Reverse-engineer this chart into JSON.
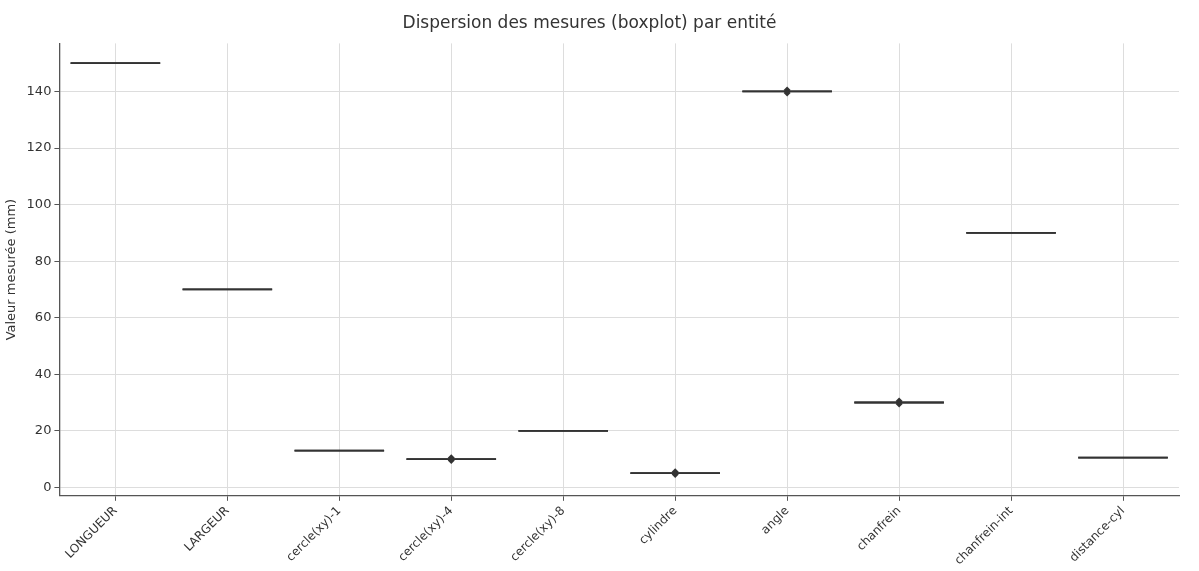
{
  "chart_data": {
    "type": "box",
    "title": "Dispersion des mesures (boxplot) par entité",
    "ylabel": "Valeur mesurée (mm)",
    "categories": [
      "LONGUEUR",
      "LARGEUR",
      "cercle(xy)-1",
      "cercle(xy)-4",
      "cercle(xy)-8",
      "cylindre",
      "angle",
      "chanfrein",
      "chanfrein-int",
      "distance-cyl"
    ],
    "color": "#333333",
    "boxes": [
      {
        "low": 150,
        "q1": 150,
        "median": 150,
        "q3": 150,
        "high": 150
      },
      {
        "low": 70,
        "q1": 70,
        "median": 70,
        "q3": 70,
        "high": 70
      },
      {
        "low": 13,
        "q1": 13,
        "median": 13,
        "q3": 13,
        "high": 13
      },
      {
        "low": 10,
        "q1": 10,
        "median": 10,
        "q3": 10,
        "high": 10,
        "outliers": [
          10.5,
          9.5
        ]
      },
      {
        "low": 20,
        "q1": 20,
        "median": 20,
        "q3": 20,
        "high": 20
      },
      {
        "low": 5,
        "q1": 5,
        "median": 5,
        "q3": 5,
        "high": 5,
        "outliers": [
          5.5,
          4.5
        ]
      },
      {
        "low": 140,
        "q1": 140,
        "median": 140,
        "q3": 140,
        "high": 140,
        "outliers": [
          140.5,
          139.5
        ]
      },
      {
        "low": 30,
        "q1": 30,
        "median": 30,
        "q3": 30,
        "high": 30,
        "outliers": [
          30.5,
          29.5
        ]
      },
      {
        "low": 90,
        "q1": 90,
        "median": 90,
        "q3": 90,
        "high": 90
      },
      {
        "low": 10.5,
        "q1": 10.5,
        "median": 10.5,
        "q3": 10.5,
        "high": 10.5
      }
    ],
    "ylim": [
      -3,
      157
    ],
    "yticks": [
      0,
      20,
      40,
      60,
      80,
      100,
      120,
      140
    ],
    "grid": true,
    "legend": false
  }
}
